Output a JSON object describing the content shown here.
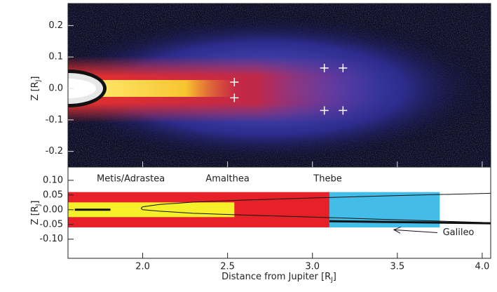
{
  "chart_data": [
    {
      "type": "scatter",
      "ylabel": [
        "Z [R",
        "J",
        "]"
      ],
      "ylim": [
        -0.25,
        0.27
      ],
      "yticks": [
        -0.2,
        -0.1,
        {
          "value": 0,
          "label": "0.0"
        },
        0.1,
        0.2
      ],
      "series": [
        {
          "color": "#ffffff",
          "x": [
            2.54,
            2.54,
            3.07,
            3.18,
            3.07,
            3.18
          ],
          "values": [
            0.02,
            -0.03,
            0.065,
            0.065,
            -0.07,
            -0.07
          ]
        }
      ]
    },
    {
      "type": "regions",
      "xlabel": [
        "Distance from Jupiter [R",
        "J",
        "]"
      ],
      "ylabel": [
        "Z [R",
        "J",
        "]"
      ],
      "xlim": [
        1.56,
        4.05
      ],
      "xticks": [
        {
          "value": 2,
          "label": "2.0"
        },
        2.5,
        {
          "value": 3,
          "label": "3.0"
        },
        3.5,
        {
          "value": 4,
          "label": "4.0"
        }
      ],
      "ylim": [
        -0.165,
        0.145
      ],
      "yticks": [
        {
          "value": -0.1,
          "label": "-0.10"
        },
        -0.05,
        {
          "value": 0,
          "label": "0.00"
        },
        0.05,
        {
          "value": 0.1,
          "label": "0.10"
        }
      ],
      "regions": [
        {
          "color": "#e8202a",
          "x": [
            1.56,
            3.1
          ],
          "z": [
            -0.06,
            0.06
          ]
        },
        {
          "color": "#f5f02a",
          "x": [
            1.56,
            2.54
          ],
          "z": [
            -0.025,
            0.025
          ]
        },
        {
          "color": "#43bde8",
          "x": [
            3.1,
            3.75
          ],
          "z": [
            -0.06,
            0.06
          ]
        }
      ],
      "lines": [
        {
          "color": "#111111",
          "width": 1,
          "x": [
            1.99,
            2.0,
            2.1,
            2.3,
            2.6,
            3.0,
            3.5,
            4.05
          ],
          "values": [
            0.005,
            0.01,
            0.018,
            0.026,
            0.033,
            0.04,
            0.048,
            0.056
          ]
        },
        {
          "color": "#111111",
          "width": 1,
          "x": [
            1.99,
            2.0,
            2.1,
            2.3,
            2.6,
            3.0,
            3.5,
            4.05
          ],
          "values": [
            0.005,
            0,
            -0.005,
            -0.012,
            -0.018,
            -0.025,
            -0.034,
            -0.044
          ]
        },
        {
          "color": "#111111",
          "width": 3,
          "x": [
            3.1,
            3.5,
            4.05
          ],
          "values": [
            -0.039,
            -0.042,
            -0.046
          ]
        },
        {
          "color": "#111111",
          "width": 3,
          "x": [
            1.6,
            1.81
          ],
          "values": [
            0,
            0
          ]
        }
      ],
      "annotations": [
        {
          "text": "Metis/Adrastea",
          "x": 1.93,
          "z": 0.105
        },
        {
          "text": "Amalthea",
          "x": 2.5,
          "z": 0.105
        },
        {
          "text": "Thebe",
          "x": 3.09,
          "z": 0.105
        },
        {
          "text": "Galileo",
          "x": 3.86,
          "z": -0.078,
          "arrow_to": [
            3.48,
            -0.068
          ]
        }
      ]
    }
  ]
}
